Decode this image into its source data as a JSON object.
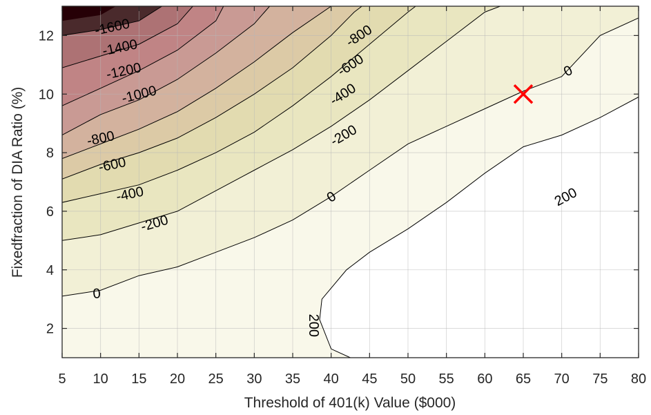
{
  "chart_data": {
    "type": "contour",
    "title": "",
    "xlabel": "Threshold of 401(k) Value ($000)",
    "ylabel": "Fixedfraction of DIA Ratio (%)",
    "xlim": [
      5,
      80
    ],
    "ylim": [
      1,
      13
    ],
    "xticks": [
      "5",
      "10",
      "15",
      "20",
      "25",
      "30",
      "35",
      "40",
      "45",
      "50",
      "55",
      "60",
      "65",
      "70",
      "75",
      "80"
    ],
    "yticks": [
      "2",
      "4",
      "6",
      "8",
      "10",
      "12"
    ],
    "grid": true,
    "levels": [
      {
        "level": 200,
        "colorband": "#ffffff",
        "points": [
          [
            42.5,
            1
          ],
          [
            40,
            1.3
          ],
          [
            38.5,
            2.3
          ],
          [
            38.8,
            3.0
          ],
          [
            42,
            4
          ],
          [
            45,
            4.6
          ],
          [
            50,
            5.4
          ],
          [
            55,
            6.3
          ],
          [
            60,
            7.3
          ],
          [
            65,
            8.2
          ],
          [
            70,
            8.6
          ],
          [
            75,
            9.2
          ],
          [
            80,
            9.9
          ]
        ]
      },
      {
        "level": 0,
        "colorband": "#f9f8ea",
        "points": [
          [
            5,
            3.1
          ],
          [
            10,
            3.3
          ],
          [
            15,
            3.8
          ],
          [
            20,
            4.1
          ],
          [
            25,
            4.6
          ],
          [
            30,
            5.1
          ],
          [
            35,
            5.7
          ],
          [
            40,
            6.5
          ],
          [
            45,
            7.4
          ],
          [
            50,
            8.3
          ],
          [
            55,
            8.9
          ],
          [
            60,
            9.5
          ],
          [
            65,
            10.1
          ],
          [
            70,
            10.6
          ],
          [
            75,
            12.0
          ],
          [
            80,
            12.6
          ]
        ]
      },
      {
        "level": -200,
        "colorband": "#f2f0d6",
        "points": [
          [
            5,
            5.0
          ],
          [
            10,
            5.2
          ],
          [
            15,
            5.6
          ],
          [
            20,
            6.0
          ],
          [
            25,
            6.7
          ],
          [
            30,
            7.4
          ],
          [
            35,
            8.1
          ],
          [
            40,
            8.9
          ],
          [
            45,
            9.8
          ],
          [
            50,
            10.8
          ],
          [
            55,
            11.8
          ],
          [
            60,
            12.8
          ],
          [
            62,
            13.0
          ]
        ]
      },
      {
        "level": -400,
        "colorband": "#e9e6c0",
        "points": [
          [
            5,
            6.3
          ],
          [
            10,
            6.6
          ],
          [
            15,
            6.9
          ],
          [
            20,
            7.4
          ],
          [
            25,
            8.0
          ],
          [
            30,
            8.7
          ],
          [
            35,
            9.6
          ],
          [
            40,
            10.6
          ],
          [
            45,
            11.7
          ],
          [
            50,
            12.8
          ],
          [
            51,
            13.0
          ]
        ]
      },
      {
        "level": -600,
        "colorband": "#e2dbb0",
        "points": [
          [
            5,
            7.1
          ],
          [
            10,
            7.6
          ],
          [
            15,
            8.0
          ],
          [
            20,
            8.5
          ],
          [
            25,
            9.2
          ],
          [
            30,
            10.0
          ],
          [
            35,
            10.9
          ],
          [
            40,
            12.0
          ],
          [
            43,
            12.8
          ],
          [
            44,
            13.0
          ]
        ]
      },
      {
        "level": -800,
        "colorband": "#dccaa6",
        "points": [
          [
            5,
            7.8
          ],
          [
            10,
            8.3
          ],
          [
            15,
            8.8
          ],
          [
            20,
            9.4
          ],
          [
            25,
            10.2
          ],
          [
            30,
            11.1
          ],
          [
            35,
            12.1
          ],
          [
            40,
            13.0
          ]
        ]
      },
      {
        "level": -1000,
        "colorband": "#d3b29e",
        "points": [
          [
            5,
            8.6
          ],
          [
            10,
            9.3
          ],
          [
            15,
            9.8
          ],
          [
            20,
            10.5
          ],
          [
            25,
            11.4
          ],
          [
            30,
            12.4
          ],
          [
            32,
            13.0
          ]
        ]
      },
      {
        "level": -1200,
        "colorband": "#c99a94",
        "points": [
          [
            5,
            9.6
          ],
          [
            10,
            10.2
          ],
          [
            15,
            10.8
          ],
          [
            20,
            11.5
          ],
          [
            25,
            12.5
          ],
          [
            26,
            13.0
          ]
        ]
      },
      {
        "level": -1400,
        "colorband": "#c08485",
        "points": [
          [
            5,
            10.9
          ],
          [
            10,
            11.3
          ],
          [
            15,
            11.7
          ],
          [
            20,
            12.4
          ],
          [
            22,
            13.0
          ]
        ]
      },
      {
        "level": -1600,
        "colorband": "#ad7274",
        "points": [
          [
            5,
            12.0
          ],
          [
            10,
            12.2
          ],
          [
            15,
            12.5
          ],
          [
            18,
            13.0
          ]
        ]
      },
      {
        "level": -1800,
        "colorband": "#4a2a2c",
        "points": [
          [
            5,
            12.5
          ],
          [
            10,
            12.7
          ],
          [
            12,
            13.0
          ]
        ]
      }
    ],
    "top_fill_color": "#260006",
    "contour_labels": [
      {
        "text": "-1600",
        "x": 11.5,
        "y": 12.3,
        "angle": -12
      },
      {
        "text": "-1400",
        "x": 12.5,
        "y": 11.6,
        "angle": -12
      },
      {
        "text": "-1200",
        "x": 13.0,
        "y": 10.8,
        "angle": -12
      },
      {
        "text": "-1000",
        "x": 15.0,
        "y": 10.0,
        "angle": -14
      },
      {
        "text": "-800",
        "x": 10.0,
        "y": 8.5,
        "angle": -12
      },
      {
        "text": "-600",
        "x": 11.5,
        "y": 7.6,
        "angle": -12
      },
      {
        "text": "-400",
        "x": 13.8,
        "y": 6.6,
        "angle": -12
      },
      {
        "text": "-200",
        "x": 17.0,
        "y": 5.6,
        "angle": -16
      },
      {
        "text": "0",
        "x": 9.5,
        "y": 3.2,
        "angle": -5
      },
      {
        "text": "-800",
        "x": 43.6,
        "y": 12.0,
        "angle": -33
      },
      {
        "text": "-600",
        "x": 42.5,
        "y": 11.0,
        "angle": -33
      },
      {
        "text": "-400",
        "x": 41.5,
        "y": 10.0,
        "angle": -33
      },
      {
        "text": "-200",
        "x": 41.6,
        "y": 8.6,
        "angle": -30
      },
      {
        "text": "0",
        "x": 40.0,
        "y": 6.5,
        "angle": -33
      },
      {
        "text": "0",
        "x": 70.8,
        "y": 10.8,
        "angle": -28
      },
      {
        "text": "200",
        "x": 70.5,
        "y": 6.5,
        "angle": -28
      },
      {
        "text": "200",
        "x": 37.8,
        "y": 2.1,
        "angle": 90
      }
    ],
    "marker": {
      "symbol": "x",
      "x": 65,
      "y": 10,
      "color": "#ff0000"
    }
  }
}
